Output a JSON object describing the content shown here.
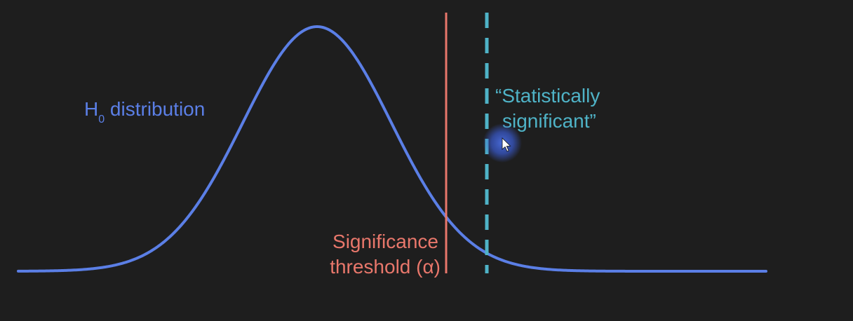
{
  "labels": {
    "h0_prefix": "H",
    "h0_subscript": "0",
    "h0_suffix": " distribution",
    "significance_line1": "Significance",
    "significance_line2": "threshold (α)",
    "stat_sig_line1": "“Statistically",
    "stat_sig_line2": "significant”"
  },
  "colors": {
    "background": "#1e1e1e",
    "curve": "#5b7fe6",
    "threshold": "#e8776b",
    "observed": "#4fb3c7",
    "cursor_highlight": "#3a5bd0"
  },
  "icons": {
    "cursor": "mouse-pointer-icon"
  }
}
